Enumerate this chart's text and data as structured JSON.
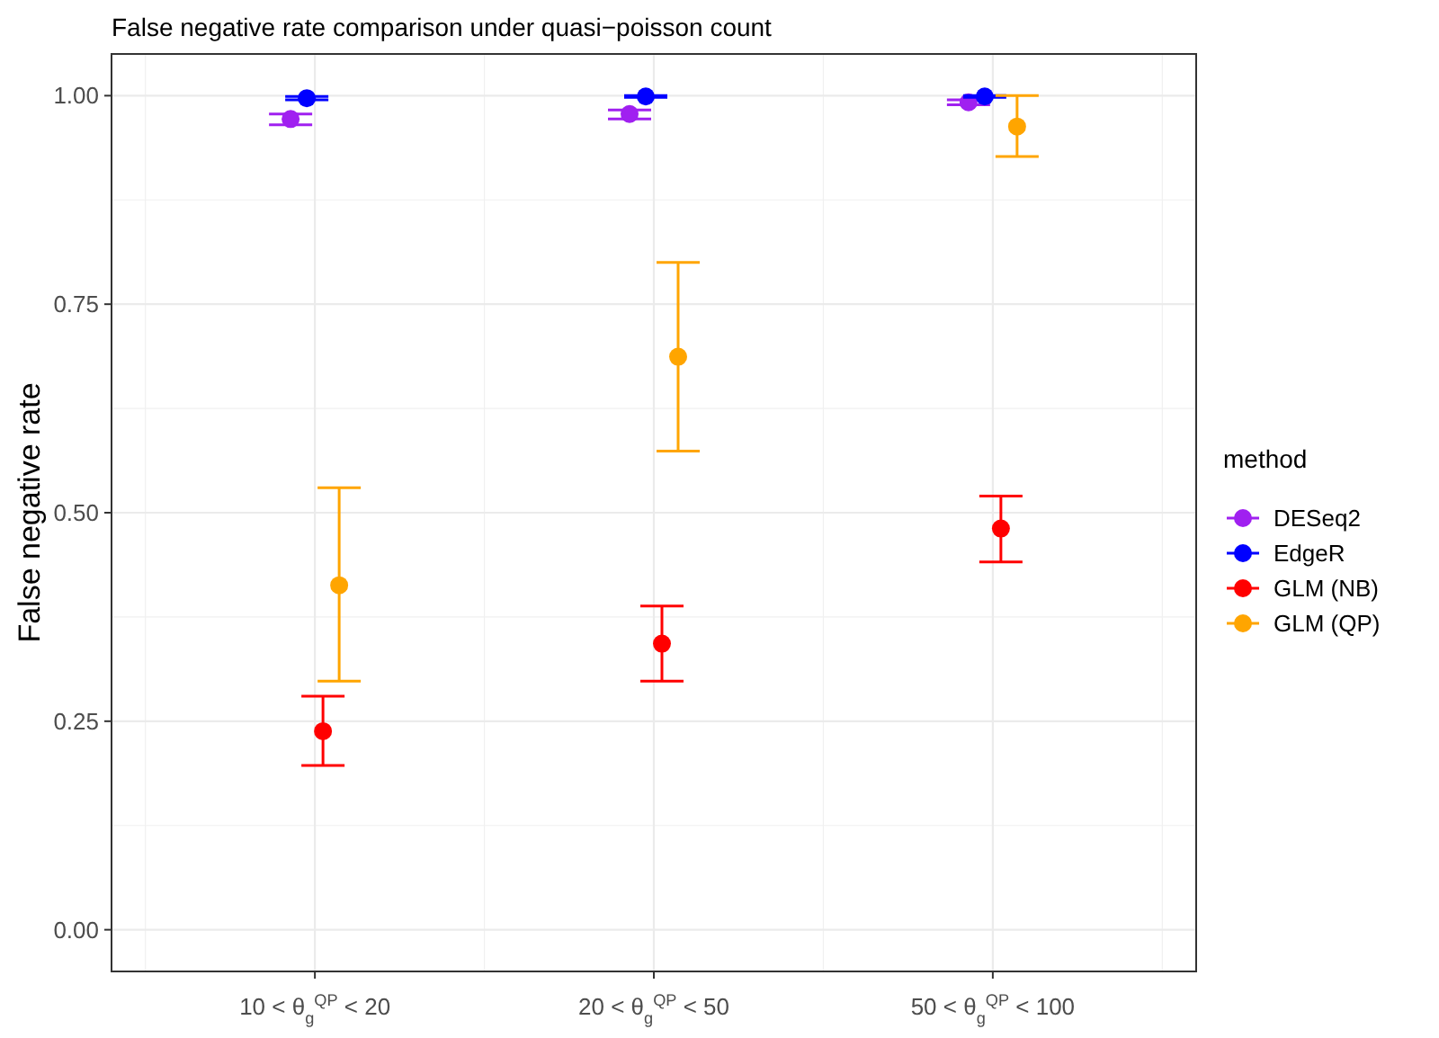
{
  "chart_data": {
    "type": "scatter",
    "title": "False negative rate comparison under quasi−poisson count",
    "ylabel": "False negative rate",
    "legend_title": "method",
    "legend": "right",
    "grid": true,
    "marker": "circle",
    "categories": [
      "10 < θ$_{g}$$^{QP}$ < 20",
      "20 < θ$_{g}$$^{QP}$ < 50",
      "50 < θ$_{g}$$^{QP}$ < 100"
    ],
    "ylim": [
      -0.05,
      1.05
    ],
    "yticks": [
      {
        "value": 0,
        "label": "0.00"
      },
      {
        "value": 0.25,
        "label": "0.25"
      },
      {
        "value": 0.5,
        "label": "0.50"
      },
      {
        "value": 0.75,
        "label": "0.75"
      },
      {
        "value": 1,
        "label": "1.00"
      }
    ],
    "series": [
      {
        "name": "DESeq2",
        "color": "#a020f0",
        "values": [
          0.972,
          0.978,
          0.992
        ],
        "errors": [
          [
            0.965,
            0.978
          ],
          [
            0.972,
            0.983
          ],
          [
            0.989,
            0.995
          ]
        ]
      },
      {
        "name": "EdgeR",
        "color": "#0000ff",
        "values": [
          0.997,
          0.999,
          0.999
        ],
        "errors": [
          [
            0.995,
            0.999
          ],
          [
            0.998,
            1.0
          ],
          [
            0.998,
            1.0
          ]
        ]
      },
      {
        "name": "GLM (NB)",
        "color": "#ff0000",
        "values": [
          0.238,
          0.343,
          0.481
        ],
        "errors": [
          [
            0.197,
            0.28
          ],
          [
            0.298,
            0.388
          ],
          [
            0.441,
            0.52
          ]
        ]
      },
      {
        "name": "GLM (QP)",
        "color": "#ffa500",
        "values": [
          0.413,
          0.687,
          0.963
        ],
        "errors": [
          [
            0.298,
            0.53
          ],
          [
            0.574,
            0.8
          ],
          [
            0.927,
            1.0
          ]
        ]
      }
    ]
  }
}
